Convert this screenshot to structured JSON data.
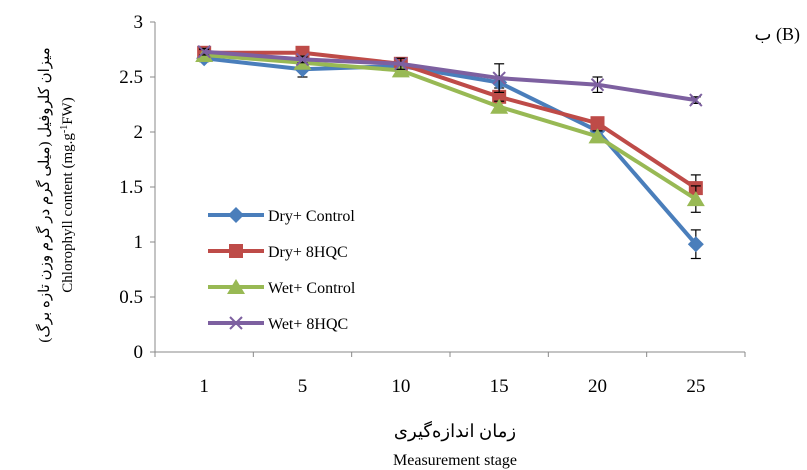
{
  "chart_data": {
    "type": "line",
    "panel_label": "ب (B)",
    "xlabel_fa": "زمان اندازه‌گیری",
    "xlabel_en": "Measurement stage",
    "ylabel_fa": "میزان کلروفیل (میلی گرم در گرم وزن تازه برگ)",
    "ylabel_en_parts": [
      "Chlorophyll content (mg.g",
      "-1",
      "FW)"
    ],
    "categories": [
      "1",
      "5",
      "10",
      "15",
      "20",
      "25"
    ],
    "ylim": [
      0,
      3
    ],
    "yticks": [
      "0",
      "0.5",
      "1",
      "1.5",
      "2",
      "2.5",
      "3"
    ],
    "grid": false,
    "legend_position": "left-center",
    "series": [
      {
        "name": "Dry+ Control",
        "color": "#4a7ebb",
        "marker": "diamond",
        "values": [
          2.67,
          2.57,
          2.6,
          2.45,
          2.01,
          0.98
        ],
        "errors": [
          0.03,
          0.07,
          0.05,
          0.05,
          0.05,
          0.13
        ]
      },
      {
        "name": "Dry+ 8HQC",
        "color": "#be4b48",
        "marker": "square",
        "values": [
          2.72,
          2.72,
          2.62,
          2.32,
          2.08,
          1.49
        ],
        "errors": [
          0.05,
          0.05,
          0.05,
          0.05,
          0.05,
          0.12
        ]
      },
      {
        "name": "Wet+ Control",
        "color": "#98b954",
        "marker": "triangle",
        "values": [
          2.7,
          2.63,
          2.56,
          2.23,
          1.96,
          1.39
        ],
        "errors": [
          0.05,
          0.05,
          0.05,
          0.05,
          0.05,
          0.12
        ]
      },
      {
        "name": "Wet+ 8HQC",
        "color": "#7d60a0",
        "marker": "x",
        "values": [
          2.73,
          2.66,
          2.62,
          2.49,
          2.43,
          2.29
        ],
        "errors": [
          0.03,
          0.03,
          0.05,
          0.13,
          0.07,
          0.03
        ]
      }
    ]
  }
}
